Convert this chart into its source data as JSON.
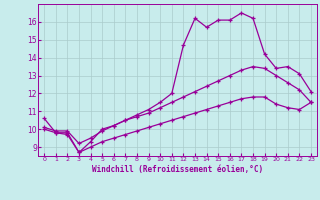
{
  "xlabel": "Windchill (Refroidissement éolien,°C)",
  "xlim": [
    -0.5,
    23.5
  ],
  "ylim": [
    8.5,
    17.0
  ],
  "yticks": [
    9,
    10,
    11,
    12,
    13,
    14,
    15,
    16
  ],
  "xticks": [
    0,
    1,
    2,
    3,
    4,
    5,
    6,
    7,
    8,
    9,
    10,
    11,
    12,
    13,
    14,
    15,
    16,
    17,
    18,
    19,
    20,
    21,
    22,
    23
  ],
  "bg_color": "#c8ecec",
  "line_color": "#990099",
  "grid_color": "#aacccc",
  "line1_x": [
    0,
    1,
    2,
    3,
    4,
    5,
    6,
    7,
    8,
    9,
    10,
    11,
    12,
    13,
    14,
    15,
    16,
    17,
    18,
    19,
    20,
    21,
    22,
    23
  ],
  "line1_y": [
    10.6,
    9.8,
    9.8,
    8.7,
    9.3,
    10.0,
    10.2,
    10.5,
    10.8,
    11.1,
    11.5,
    12.0,
    14.7,
    16.2,
    15.7,
    16.1,
    16.1,
    16.5,
    16.2,
    14.2,
    13.4,
    13.5,
    13.1,
    12.1
  ],
  "line2_x": [
    0,
    1,
    2,
    3,
    4,
    5,
    6,
    7,
    8,
    9,
    10,
    11,
    12,
    13,
    14,
    15,
    16,
    17,
    18,
    19,
    20,
    21,
    22,
    23
  ],
  "line2_y": [
    10.1,
    9.9,
    9.9,
    9.2,
    9.5,
    9.9,
    10.2,
    10.5,
    10.7,
    10.9,
    11.2,
    11.5,
    11.8,
    12.1,
    12.4,
    12.7,
    13.0,
    13.3,
    13.5,
    13.4,
    13.0,
    12.6,
    12.2,
    11.5
  ],
  "line3_x": [
    0,
    1,
    2,
    3,
    4,
    5,
    6,
    7,
    8,
    9,
    10,
    11,
    12,
    13,
    14,
    15,
    16,
    17,
    18,
    19,
    20,
    21,
    22,
    23
  ],
  "line3_y": [
    10.0,
    9.8,
    9.7,
    8.7,
    9.0,
    9.3,
    9.5,
    9.7,
    9.9,
    10.1,
    10.3,
    10.5,
    10.7,
    10.9,
    11.1,
    11.3,
    11.5,
    11.7,
    11.8,
    11.8,
    11.4,
    11.2,
    11.1,
    11.5
  ]
}
